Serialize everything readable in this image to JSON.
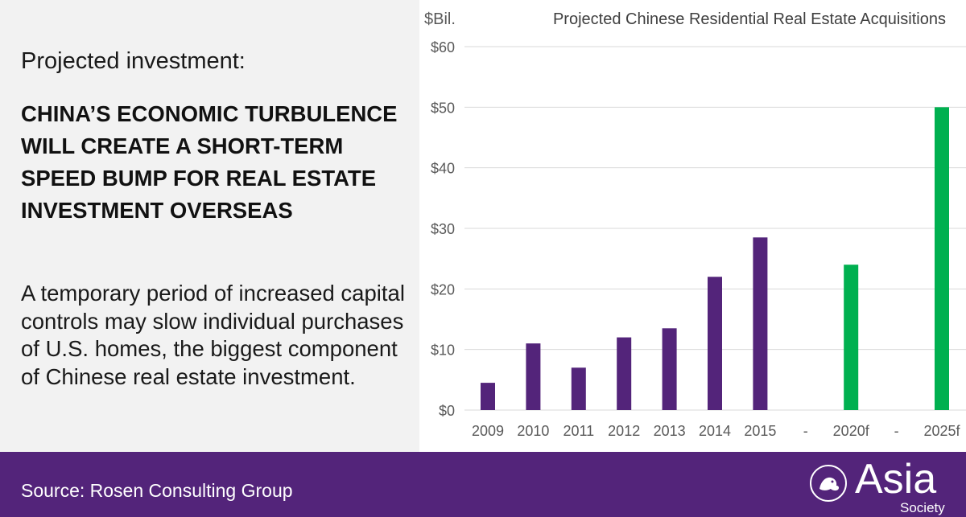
{
  "slide": {
    "kicker": "Projected investment:",
    "headline": "CHINA’S ECONOMIC TURBULENCE WILL CREATE A SHORT-TERM SPEED BUMP FOR REAL ESTATE INVESTMENT OVERSEAS",
    "body": "A temporary period of increased capital controls may slow individual purchases of U.S. homes, the biggest component of Chinese real estate investment."
  },
  "footer": {
    "source": "Source: Rosen Consulting Group",
    "logo_word": "Asia",
    "logo_sub": "Society",
    "logo_icon": "lion-emblem-icon"
  },
  "colors": {
    "panel_bg": "#f2f2f2",
    "footer_bg": "#53247a",
    "historical_bar": "#53247a",
    "forecast_bar": "#00b050",
    "gridline": "#d9d9d9",
    "axis_text": "#595959"
  },
  "chart_data": {
    "type": "bar",
    "title": "Projected Chinese Residential Real Estate Acquisitions",
    "ylabel": "$Bil.",
    "xlabel": "",
    "categories": [
      "2009",
      "2010",
      "2011",
      "2012",
      "2013",
      "2014",
      "2015",
      "-",
      "2020f",
      "-",
      "2025f"
    ],
    "values": [
      4.5,
      11,
      7,
      12,
      13.5,
      22,
      28.5,
      null,
      24,
      null,
      50
    ],
    "forecast": [
      false,
      false,
      false,
      false,
      false,
      false,
      false,
      false,
      true,
      false,
      true
    ],
    "ylim": [
      0,
      60
    ],
    "yticks": [
      0,
      10,
      20,
      30,
      40,
      50,
      60
    ],
    "ytick_labels": [
      "$0",
      "$10",
      "$20",
      "$30",
      "$40",
      "$50",
      "$60"
    ],
    "grid": true,
    "legend": "none"
  }
}
